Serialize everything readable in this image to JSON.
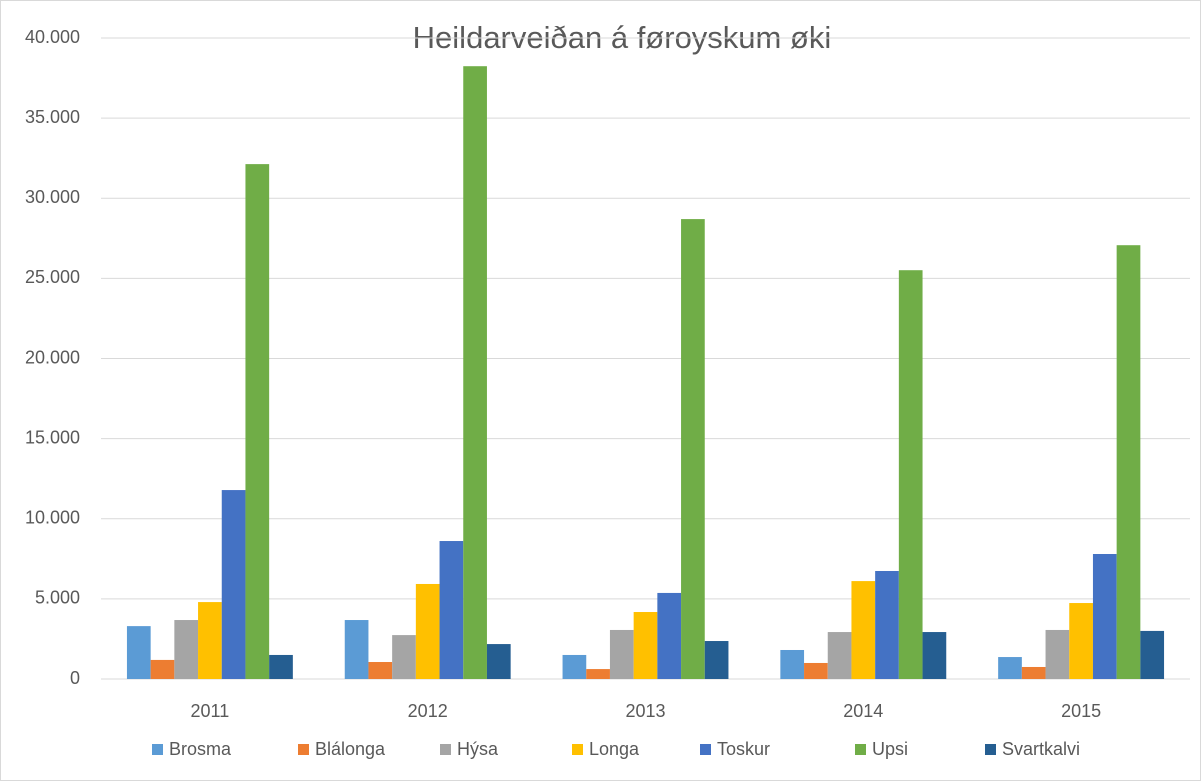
{
  "chart_data": {
    "type": "bar",
    "title": "Heildarveiðan á føroyskum øki",
    "categories": [
      "2011",
      "2012",
      "2013",
      "2014",
      "2015"
    ],
    "series": [
      {
        "name": "Brosma",
        "color": "#5b9bd5",
        "values": [
          3300,
          3680,
          1500,
          1810,
          1370
        ]
      },
      {
        "name": "Blálonga",
        "color": "#ed7d31",
        "values": [
          1190,
          1060,
          620,
          1000,
          750
        ]
      },
      {
        "name": "Hýsa",
        "color": "#a5a5a5",
        "values": [
          3680,
          2740,
          3060,
          2930,
          3060
        ]
      },
      {
        "name": "Longa",
        "color": "#ffc000",
        "values": [
          4800,
          5930,
          4180,
          6110,
          4740
        ]
      },
      {
        "name": "Toskur",
        "color": "#4472c4",
        "values": [
          11790,
          8610,
          5370,
          6740,
          7800
        ]
      },
      {
        "name": "Upsi",
        "color": "#70ad47",
        "values": [
          32130,
          38240,
          28700,
          25510,
          27070
        ]
      },
      {
        "name": "Svartkalvi",
        "color": "#255e91",
        "values": [
          1500,
          2180,
          2370,
          2930,
          3000
        ]
      }
    ],
    "ylim": [
      0,
      40000
    ],
    "yticks": [
      0,
      {
        "value": 5000,
        "label": "5.000"
      },
      {
        "value": 10000,
        "label": "10.000"
      },
      {
        "value": 15000,
        "label": "15.000"
      },
      {
        "value": 20000,
        "label": "20.000"
      },
      {
        "value": 25000,
        "label": "25.000"
      },
      {
        "value": 30000,
        "label": "30.000"
      },
      {
        "value": 35000,
        "label": "35.000"
      },
      {
        "value": 40000,
        "label": "40.000"
      }
    ],
    "grid": true,
    "legend": "bottom"
  }
}
